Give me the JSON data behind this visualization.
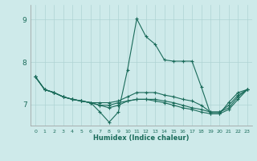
{
  "xlabel": "Humidex (Indice chaleur)",
  "background_color": "#ceeaea",
  "line_color": "#1a6b5a",
  "grid_color": "#afd4d4",
  "xlim": [
    -0.5,
    23.5
  ],
  "ylim": [
    6.5,
    9.35
  ],
  "yticks": [
    7,
    8,
    9
  ],
  "xtick_labels": [
    "0",
    "1",
    "2",
    "3",
    "4",
    "5",
    "6",
    "7",
    "8",
    "9",
    "10",
    "11",
    "12",
    "13",
    "14",
    "15",
    "16",
    "17",
    "18",
    "19",
    "20",
    "21",
    "22",
    "23"
  ],
  "series": [
    [
      7.65,
      7.35,
      7.28,
      7.18,
      7.12,
      7.08,
      7.04,
      6.82,
      6.58,
      6.82,
      7.82,
      9.02,
      8.6,
      8.42,
      8.05,
      8.02,
      8.02,
      8.02,
      7.42,
      6.78,
      6.78,
      7.05,
      7.28,
      7.35
    ],
    [
      7.65,
      7.35,
      7.28,
      7.18,
      7.12,
      7.08,
      7.04,
      7.04,
      7.04,
      7.08,
      7.18,
      7.28,
      7.28,
      7.28,
      7.22,
      7.18,
      7.12,
      7.08,
      6.98,
      6.82,
      6.82,
      6.98,
      7.22,
      7.35
    ],
    [
      7.65,
      7.35,
      7.28,
      7.18,
      7.12,
      7.08,
      7.04,
      6.98,
      6.98,
      7.04,
      7.08,
      7.12,
      7.12,
      7.12,
      7.08,
      7.04,
      6.98,
      6.92,
      6.88,
      6.82,
      6.82,
      6.92,
      7.18,
      7.35
    ],
    [
      7.65,
      7.35,
      7.28,
      7.18,
      7.12,
      7.08,
      7.04,
      6.98,
      6.92,
      6.98,
      7.08,
      7.12,
      7.12,
      7.08,
      7.04,
      6.98,
      6.92,
      6.88,
      6.82,
      6.78,
      6.78,
      6.88,
      7.12,
      7.35
    ]
  ]
}
